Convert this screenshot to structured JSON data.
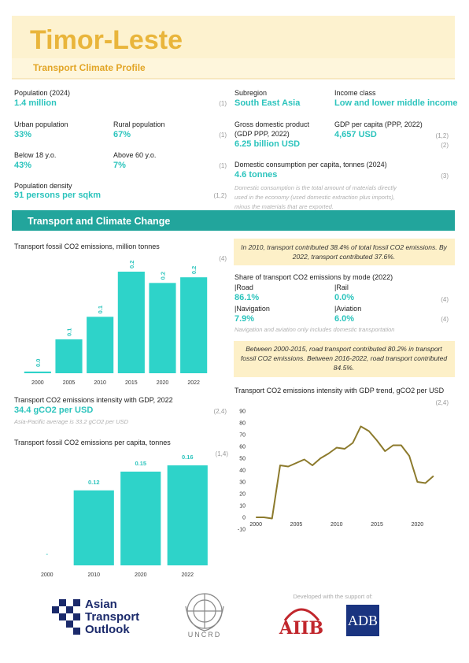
{
  "header": {
    "title": "Timor-Leste",
    "subtitle": "Transport Climate Profile"
  },
  "stats": {
    "population": {
      "label": "Population (2024)",
      "value": "1.4 million",
      "source": "(1)"
    },
    "urban": {
      "label": "Urban population",
      "value": "33%"
    },
    "rural": {
      "label": "Rural population",
      "value": "67%",
      "source": "(1)"
    },
    "below18": {
      "label": "Below 18 y.o.",
      "value": "43%"
    },
    "above60": {
      "label": "Above 60 y.o.",
      "value": "7%",
      "source": "(1)"
    },
    "density": {
      "label": "Population density",
      "value": "91 persons per sqkm",
      "source": "(1,2)"
    },
    "subregion": {
      "label": "Subregion",
      "value": "South East Asia"
    },
    "income": {
      "label": "Income class",
      "value": "Low and lower middle income"
    },
    "gdp": {
      "label": "Gross domestic product",
      "label2": "(GDP PPP, 2022)",
      "value": "6.25 billion USD",
      "source": "(2)"
    },
    "gdp_per_capita": {
      "label": "GDP per capita (PPP, 2022)",
      "value": "4,657  USD",
      "source": "(1,2)"
    },
    "consumption": {
      "label": "Domestic consumption per capita, tonnes (2024)",
      "value": "4.6 tonnes",
      "source": "(3)",
      "note": [
        "Domestic consumption is the total amount of materials directly",
        "used in the economy (used domestic extraction plus imports),",
        "minus the materials that are exported."
      ]
    }
  },
  "section_title": "Transport and Climate Change",
  "callout1": [
    "In 2010, transport contributed 38.4% of total fossil CO2 emissions. By",
    "2022, transport contributed 37.6%."
  ],
  "modes": {
    "title": "Share of transport CO2 emissions by mode (2022)",
    "items": [
      {
        "label": "|Road",
        "value": "86.1%"
      },
      {
        "label": "|Rail",
        "value": "0.0%"
      },
      {
        "label": "|Navigation",
        "value": "7.9%"
      },
      {
        "label": "|Aviation",
        "value": "6.0%"
      }
    ],
    "source": "(4)",
    "source2": "(4)",
    "note": "Navigation and aviation only includes domestic transportation"
  },
  "callout2": [
    "Between 2000-2015, road transport contributed 80.2% in transport",
    "fossil CO2 emissions. Between 2016-2022, road transport contributed",
    "84.5%."
  ],
  "intensity": {
    "label": "Transport CO2 emissions intensity with GDP, 2022",
    "value": "34.4 gCO2 per USD",
    "source": "(2,4)",
    "note": "Asia-Pacific average is 33.2 gCO2 per USD"
  },
  "chart_data": [
    {
      "type": "bar",
      "title": "Transport fossil CO2 emissions, million tonnes",
      "source": "(4)",
      "categories": [
        "2000",
        "2005",
        "2010",
        "2015",
        "2020",
        "2022"
      ],
      "values": [
        0.003,
        0.06,
        0.1,
        0.18,
        0.16,
        0.17
      ],
      "value_labels": [
        "0.0",
        "0.1",
        "0.1",
        "0.2",
        "0.2",
        "0.2"
      ],
      "color": "#2ed3c9",
      "rotate_labels": true
    },
    {
      "type": "bar",
      "title": "Transport fossil CO2 emissions per capita, tonnes",
      "source": "(1,4)",
      "categories": [
        "2000",
        "2010",
        "2020",
        "2022"
      ],
      "values": [
        0,
        0.12,
        0.15,
        0.16
      ],
      "value_labels": [
        "-",
        "0.12",
        "0.15",
        "0.16"
      ],
      "color": "#2ed3c9",
      "rotate_labels": false
    },
    {
      "type": "line",
      "title": "Transport CO2 emissions intensity with GDP trend, gCO2 per USD",
      "source": "(2,4)",
      "x": [
        2000,
        2001,
        2002,
        2003,
        2004,
        2005,
        2006,
        2007,
        2008,
        2009,
        2010,
        2011,
        2012,
        2013,
        2014,
        2015,
        2016,
        2017,
        2018,
        2019,
        2020,
        2021,
        2022
      ],
      "values": [
        0,
        0,
        -1,
        44,
        43,
        46,
        49,
        44,
        50,
        54,
        59,
        58,
        63,
        77,
        73,
        65,
        56,
        61,
        61,
        52,
        30,
        29,
        35
      ],
      "color": "#8c7a2c",
      "xlim": [
        1999.3,
        2022.5
      ],
      "ylim": [
        -10,
        90
      ],
      "xticks": [
        2000,
        2005,
        2010,
        2015,
        2020
      ],
      "yticks": [
        -10,
        0,
        10,
        20,
        30,
        40,
        50,
        60,
        70,
        80,
        90
      ],
      "grid": false
    }
  ],
  "footer": {
    "ato": [
      "Asian",
      "Transport",
      "Outlook"
    ],
    "uncrd": "UNCRD",
    "support": "Developed with the support of:",
    "aiib": "AIIB",
    "adb": "ADB"
  }
}
